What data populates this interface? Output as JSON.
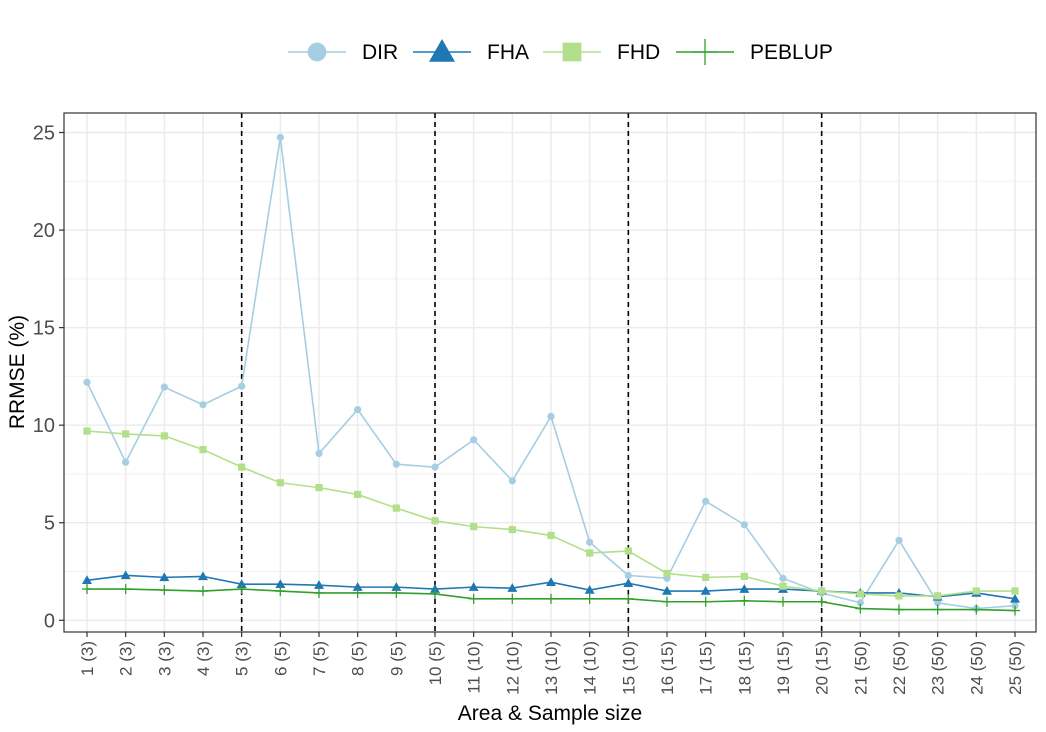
{
  "chart_data": {
    "type": "line",
    "xlabel": "Area & Sample size",
    "ylabel": "RRMSE (%)",
    "ylim": [
      -0.6,
      26
    ],
    "yticks": [
      0,
      5,
      10,
      15,
      20,
      25
    ],
    "categories": [
      "1 (3)",
      "2 (3)",
      "3 (3)",
      "4 (3)",
      "5 (3)",
      "6 (5)",
      "7 (5)",
      "8 (5)",
      "9 (5)",
      "10 (5)",
      "11 (10)",
      "12 (10)",
      "13 (10)",
      "14 (10)",
      "15 (10)",
      "16 (15)",
      "17 (15)",
      "18 (15)",
      "19 (15)",
      "20 (15)",
      "21 (50)",
      "22 (50)",
      "23 (50)",
      "24 (50)",
      "25 (50)"
    ],
    "vlines_after_category": [
      "5 (3)",
      "10 (5)",
      "15 (10)",
      "20 (15)"
    ],
    "legend_position": "top",
    "grid": true,
    "series": [
      {
        "name": "DIR",
        "color": "#a6cee3",
        "marker": "circle",
        "values": [
          12.2,
          8.1,
          11.95,
          11.05,
          12.0,
          24.75,
          8.55,
          10.8,
          8.0,
          7.85,
          9.25,
          7.15,
          10.45,
          4.0,
          2.3,
          2.15,
          6.1,
          4.9,
          2.15,
          1.4,
          0.9,
          4.1,
          0.9,
          0.6,
          0.75
        ]
      },
      {
        "name": "FHA",
        "color": "#1f78b4",
        "marker": "triangle",
        "values": [
          2.05,
          2.3,
          2.2,
          2.25,
          1.85,
          1.85,
          1.8,
          1.7,
          1.7,
          1.6,
          1.7,
          1.65,
          1.95,
          1.55,
          1.9,
          1.5,
          1.5,
          1.6,
          1.6,
          1.5,
          1.4,
          1.4,
          1.2,
          1.4,
          1.1
        ]
      },
      {
        "name": "FHD",
        "color": "#b2df8a",
        "marker": "square",
        "values": [
          9.7,
          9.55,
          9.45,
          8.75,
          7.85,
          7.05,
          6.8,
          6.45,
          5.75,
          5.1,
          4.8,
          4.65,
          4.35,
          3.45,
          3.55,
          2.4,
          2.2,
          2.25,
          1.75,
          1.5,
          1.35,
          1.25,
          1.25,
          1.5,
          1.5
        ]
      },
      {
        "name": "PEBLUP",
        "color": "#33a02c",
        "marker": "plus",
        "values": [
          1.6,
          1.6,
          1.55,
          1.5,
          1.6,
          1.5,
          1.4,
          1.4,
          1.4,
          1.35,
          1.1,
          1.1,
          1.1,
          1.1,
          1.1,
          0.95,
          0.95,
          1.0,
          0.95,
          0.95,
          0.6,
          0.55,
          0.55,
          0.55,
          0.5
        ]
      }
    ]
  }
}
